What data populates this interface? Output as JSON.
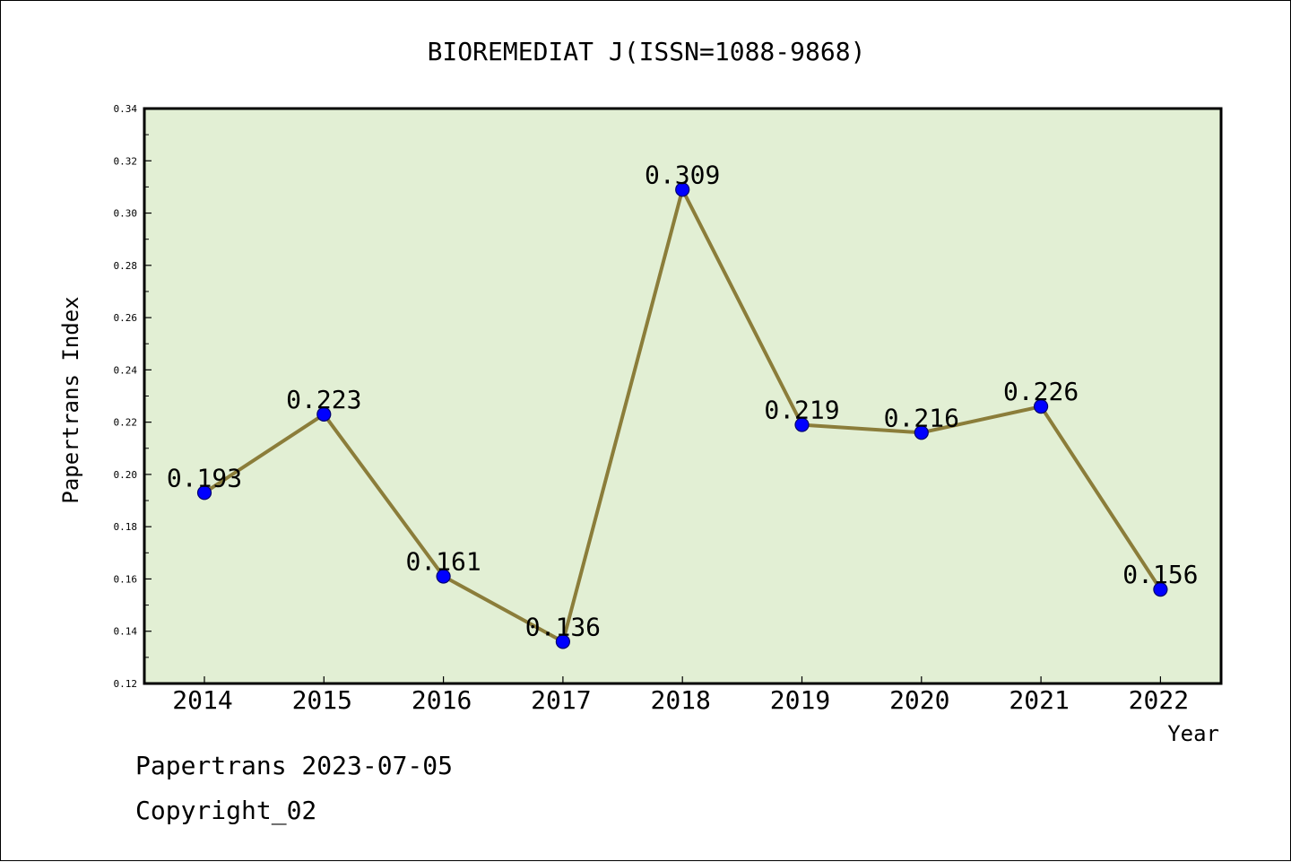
{
  "chart_data": {
    "type": "line",
    "title": "BIOREMEDIAT J(ISSN=1088-9868)",
    "xlabel": "Year",
    "ylabel": "Papertrans Index",
    "categories": [
      "2014",
      "2015",
      "2016",
      "2017",
      "2018",
      "2019",
      "2020",
      "2021",
      "2022"
    ],
    "series": [
      {
        "values": [
          0.193,
          0.223,
          0.161,
          0.136,
          0.309,
          0.219,
          0.216,
          0.226,
          0.156
        ],
        "labels": [
          "0.193",
          "0.223",
          "0.161",
          "0.136",
          "0.309",
          "0.219",
          "0.216",
          "0.226",
          "0.156"
        ]
      }
    ],
    "ylim": [
      0.12,
      0.34
    ],
    "yticks": [
      "0.12",
      "0.14",
      "0.16",
      "0.18",
      "0.20",
      "0.22",
      "0.24",
      "0.26",
      "0.28",
      "0.30",
      "0.32",
      "0.34"
    ],
    "grid": false,
    "legend": "none",
    "colors": {
      "plot_background": "#e2efd4",
      "line": "#8b7d3a",
      "marker": "#0000ff"
    }
  },
  "footer": {
    "date_text": "Papertrans 2023-07-05",
    "copyright_text": "Copyright_02"
  }
}
